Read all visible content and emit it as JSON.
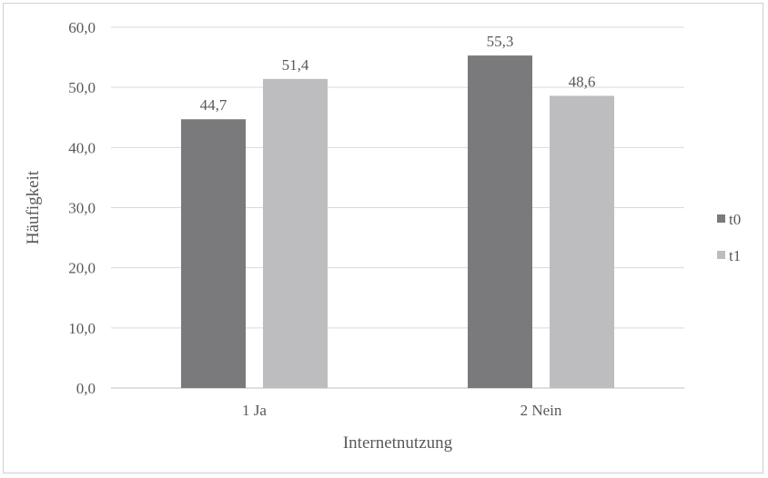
{
  "chart_data": {
    "type": "bar",
    "title": "",
    "xlabel": "Internetnutzung",
    "ylabel": "Häufigkeit",
    "ylim": [
      0,
      60
    ],
    "yticks": [
      0,
      10,
      20,
      30,
      40,
      50,
      60
    ],
    "ytick_labels": [
      "0,0",
      "10,0",
      "20,0",
      "30,0",
      "40,0",
      "50,0",
      "60,0"
    ],
    "categories": [
      "1 Ja",
      "2 Nein"
    ],
    "series": [
      {
        "name": "t0",
        "values": [
          44.7,
          55.3
        ],
        "labels": [
          "44,7",
          "55,3"
        ],
        "color": "#7a7a7c"
      },
      {
        "name": "t1",
        "values": [
          51.4,
          48.6
        ],
        "labels": [
          "51,4",
          "48,6"
        ],
        "color": "#bdbdbf"
      }
    ],
    "grid": true,
    "legend_position": "right"
  }
}
